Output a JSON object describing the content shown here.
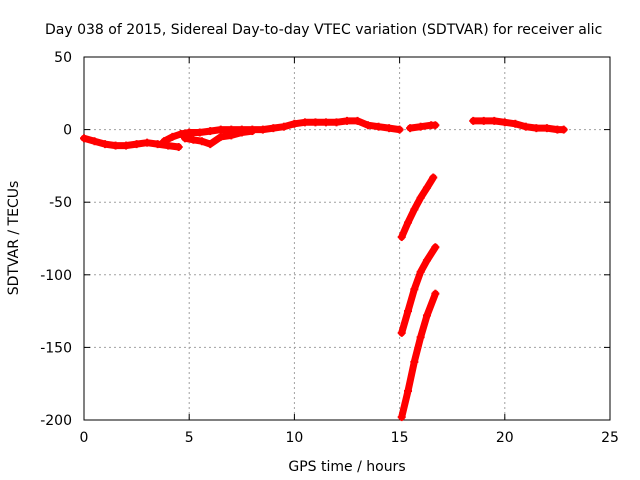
{
  "chart_data": {
    "type": "scatter",
    "title": "Day 038 of 2015, Sidereal Day-to-day VTEC variation (SDTVAR) for receiver alic",
    "xlabel": "GPS time / hours",
    "ylabel": "SDTVAR / TECUs",
    "xlim": [
      0,
      25
    ],
    "ylim": [
      -200,
      50
    ],
    "xticks": [
      "0",
      "5",
      "10",
      "15",
      "20",
      "25"
    ],
    "yticks": [
      "50",
      "0",
      "-50",
      "-100",
      "-150",
      "-200"
    ],
    "grid": true,
    "marker_color": "#ff0000",
    "series": [
      {
        "values": [
          [
            0.0,
            -6
          ],
          [
            0.5,
            -8
          ],
          [
            1.0,
            -10
          ],
          [
            1.5,
            -11
          ],
          [
            2.0,
            -11
          ],
          [
            2.5,
            -10
          ],
          [
            3.0,
            -9
          ],
          [
            3.5,
            -10
          ],
          [
            4.0,
            -11
          ],
          [
            4.5,
            -12
          ]
        ]
      },
      {
        "values": [
          [
            3.8,
            -8
          ],
          [
            4.2,
            -5
          ],
          [
            4.6,
            -3
          ],
          [
            5.0,
            -2
          ],
          [
            5.5,
            -2
          ],
          [
            6.0,
            -1
          ],
          [
            6.5,
            0
          ],
          [
            7.0,
            0
          ],
          [
            7.5,
            0
          ],
          [
            8.0,
            0
          ],
          [
            8.5,
            0
          ],
          [
            9.0,
            1
          ],
          [
            9.5,
            2
          ],
          [
            10.0,
            4
          ],
          [
            10.5,
            5
          ],
          [
            11.0,
            5
          ],
          [
            11.5,
            5
          ],
          [
            12.0,
            5
          ],
          [
            12.5,
            6
          ],
          [
            13.0,
            6
          ],
          [
            13.5,
            3
          ],
          [
            14.0,
            2
          ],
          [
            14.5,
            1
          ],
          [
            15.0,
            0
          ]
        ]
      },
      {
        "values": [
          [
            4.8,
            -6
          ],
          [
            5.2,
            -7
          ],
          [
            5.6,
            -8
          ],
          [
            6.0,
            -10
          ],
          [
            6.5,
            -5
          ],
          [
            7.0,
            -4
          ],
          [
            7.5,
            -2
          ],
          [
            8.0,
            -1
          ]
        ]
      },
      {
        "values": [
          [
            15.5,
            1
          ],
          [
            16.0,
            2
          ],
          [
            16.5,
            3
          ],
          [
            16.7,
            3
          ]
        ]
      },
      {
        "values": [
          [
            18.5,
            6
          ],
          [
            19.0,
            6
          ],
          [
            19.5,
            6
          ],
          [
            20.0,
            5
          ],
          [
            20.5,
            4
          ],
          [
            21.0,
            2
          ],
          [
            21.5,
            1
          ],
          [
            22.0,
            1
          ],
          [
            22.5,
            0
          ],
          [
            22.8,
            0
          ]
        ]
      },
      {
        "values": [
          [
            15.1,
            -74
          ],
          [
            15.4,
            -64
          ],
          [
            15.7,
            -55
          ],
          [
            16.0,
            -47
          ],
          [
            16.3,
            -40
          ],
          [
            16.6,
            -33
          ]
        ]
      },
      {
        "values": [
          [
            15.1,
            -140
          ],
          [
            15.4,
            -125
          ],
          [
            15.7,
            -110
          ],
          [
            16.0,
            -98
          ],
          [
            16.3,
            -90
          ],
          [
            16.7,
            -81
          ]
        ]
      },
      {
        "values": [
          [
            15.1,
            -198
          ],
          [
            15.4,
            -180
          ],
          [
            15.7,
            -160
          ],
          [
            16.0,
            -143
          ],
          [
            16.3,
            -128
          ],
          [
            16.7,
            -113
          ]
        ]
      }
    ]
  }
}
